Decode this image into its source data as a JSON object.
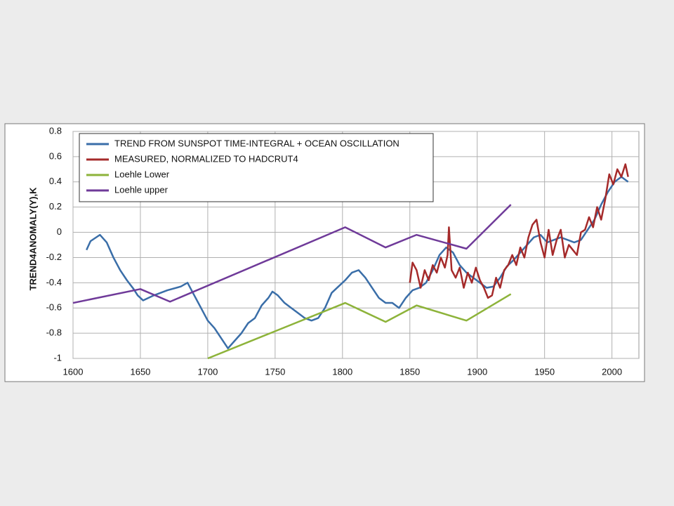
{
  "chart_data": {
    "type": "line",
    "ylabel": "TREND4ANOMALY(Y),K",
    "xlim": [
      1600,
      2020
    ],
    "xticks": [
      1600,
      1650,
      1700,
      1750,
      1800,
      1850,
      1900,
      1950,
      2000
    ],
    "ylim": [
      -1,
      0.8
    ],
    "yticks": [
      -1,
      -0.8,
      -0.6,
      -0.4,
      -0.2,
      0,
      0.2,
      0.4,
      0.6,
      0.8
    ],
    "grid": true,
    "legend": "top-left",
    "series": [
      {
        "name": "TREND FROM SUNSPOT TIME-INTEGRAL + OCEAN OSCILLATION",
        "color": "#3a6ea8",
        "x": [
          1610,
          1613,
          1620,
          1625,
          1630,
          1635,
          1640,
          1645,
          1648,
          1652,
          1660,
          1670,
          1680,
          1685,
          1690,
          1695,
          1700,
          1705,
          1710,
          1715,
          1720,
          1725,
          1730,
          1735,
          1740,
          1745,
          1748,
          1752,
          1757,
          1762,
          1767,
          1772,
          1777,
          1782,
          1787,
          1792,
          1797,
          1802,
          1807,
          1812,
          1817,
          1822,
          1827,
          1832,
          1837,
          1842,
          1847,
          1852,
          1857,
          1862,
          1867,
          1872,
          1877,
          1882,
          1887,
          1892,
          1897,
          1902,
          1907,
          1912,
          1917,
          1922,
          1927,
          1932,
          1937,
          1942,
          1947,
          1952,
          1957,
          1962,
          1967,
          1972,
          1977,
          1982,
          1987,
          1992,
          1997,
          2002,
          2007,
          2012
        ],
        "values": [
          -0.14,
          -0.07,
          -0.02,
          -0.08,
          -0.2,
          -0.3,
          -0.38,
          -0.45,
          -0.5,
          -0.54,
          -0.5,
          -0.46,
          -0.43,
          -0.4,
          -0.5,
          -0.6,
          -0.7,
          -0.76,
          -0.84,
          -0.92,
          -0.86,
          -0.8,
          -0.72,
          -0.68,
          -0.58,
          -0.52,
          -0.47,
          -0.5,
          -0.56,
          -0.6,
          -0.64,
          -0.68,
          -0.7,
          -0.68,
          -0.6,
          -0.48,
          -0.43,
          -0.38,
          -0.32,
          -0.3,
          -0.36,
          -0.44,
          -0.52,
          -0.56,
          -0.56,
          -0.6,
          -0.52,
          -0.46,
          -0.44,
          -0.4,
          -0.3,
          -0.18,
          -0.12,
          -0.16,
          -0.26,
          -0.32,
          -0.36,
          -0.4,
          -0.44,
          -0.43,
          -0.36,
          -0.27,
          -0.22,
          -0.16,
          -0.1,
          -0.04,
          -0.02,
          -0.08,
          -0.06,
          -0.04,
          -0.06,
          -0.08,
          -0.06,
          0.02,
          0.1,
          0.22,
          0.32,
          0.4,
          0.44,
          0.4
        ]
      },
      {
        "name": "MEASURED, NORMALIZED TO HADCRUT4",
        "color": "#a52a2a",
        "x": [
          1850,
          1852,
          1855,
          1858,
          1861,
          1864,
          1867,
          1870,
          1873,
          1876,
          1878,
          1879,
          1881,
          1884,
          1887,
          1890,
          1893,
          1896,
          1899,
          1902,
          1905,
          1908,
          1911,
          1914,
          1917,
          1920,
          1923,
          1926,
          1929,
          1932,
          1935,
          1938,
          1941,
          1944,
          1947,
          1950,
          1953,
          1956,
          1959,
          1962,
          1965,
          1968,
          1971,
          1974,
          1977,
          1980,
          1983,
          1986,
          1989,
          1992,
          1995,
          1998,
          2001,
          2004,
          2007,
          2010,
          2012
        ],
        "values": [
          -0.4,
          -0.24,
          -0.3,
          -0.44,
          -0.3,
          -0.38,
          -0.26,
          -0.32,
          -0.2,
          -0.28,
          -0.18,
          0.04,
          -0.3,
          -0.36,
          -0.28,
          -0.44,
          -0.32,
          -0.4,
          -0.28,
          -0.38,
          -0.44,
          -0.52,
          -0.5,
          -0.36,
          -0.44,
          -0.3,
          -0.26,
          -0.18,
          -0.26,
          -0.12,
          -0.2,
          -0.04,
          0.06,
          0.1,
          -0.08,
          -0.2,
          0.02,
          -0.18,
          -0.06,
          0.02,
          -0.2,
          -0.1,
          -0.14,
          -0.18,
          0.0,
          0.02,
          0.12,
          0.04,
          0.2,
          0.1,
          0.26,
          0.46,
          0.38,
          0.5,
          0.44,
          0.54,
          0.44
        ]
      },
      {
        "name": "Loehle Lower",
        "color": "#8db33a",
        "x": [
          1700,
          1802,
          1832,
          1855,
          1892,
          1925
        ],
        "values": [
          -1,
          -0.56,
          -0.71,
          -0.58,
          -0.7,
          -0.49
        ]
      },
      {
        "name": "Loehle upper",
        "color": "#6f3a99",
        "x": [
          1600,
          1650,
          1672,
          1802,
          1832,
          1855,
          1892,
          1925
        ],
        "values": [
          -0.56,
          -0.45,
          -0.55,
          0.04,
          -0.12,
          -0.02,
          -0.13,
          0.22
        ]
      }
    ]
  }
}
